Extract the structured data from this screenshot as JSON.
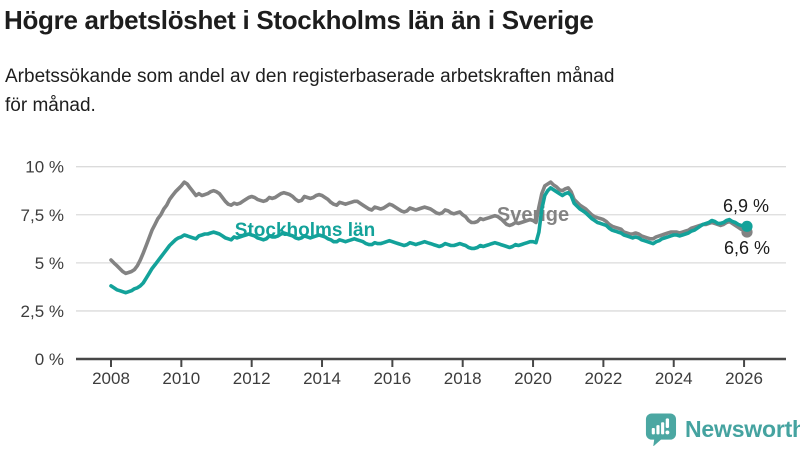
{
  "header": {
    "title": "Högre arbetslöshet i Stockholms län än i Sverige",
    "subtitle_line1": "Arbetssökande som andel av den registerbaserade arbetskraften månad",
    "subtitle_line2": "för månad."
  },
  "chart_data": {
    "type": "line",
    "title": "Högre arbetslöshet i Stockholms län än i Sverige",
    "subtitle": "Arbetssökande som andel av den registerbaserade arbetskraften månad för månad.",
    "x_unit": "month",
    "x_start": "2008-01",
    "x_end": "2026-02",
    "x_tick_years": [
      2008,
      2010,
      2012,
      2014,
      2016,
      2018,
      2020,
      2022,
      2024,
      2026
    ],
    "y_tick_values": [
      0,
      2.5,
      5,
      7.5,
      10
    ],
    "y_tick_labels": [
      "0 %",
      "2,5 %",
      "5 %",
      "7,5 %",
      "10 %"
    ],
    "ylim": [
      0,
      10.5
    ],
    "grid": true,
    "legend_position": "inline-labels",
    "series": [
      {
        "name": "Sverige",
        "color": "#838383",
        "end_label": "6,6 %",
        "end_value": 6.6,
        "values": [
          5.15,
          5.0,
          4.85,
          4.7,
          4.55,
          4.45,
          4.5,
          4.55,
          4.65,
          4.85,
          5.15,
          5.5,
          5.9,
          6.3,
          6.7,
          7.0,
          7.3,
          7.5,
          7.8,
          8.0,
          8.3,
          8.5,
          8.7,
          8.85,
          9.0,
          9.2,
          9.1,
          8.9,
          8.7,
          8.5,
          8.6,
          8.5,
          8.55,
          8.6,
          8.7,
          8.75,
          8.7,
          8.6,
          8.4,
          8.2,
          8.05,
          8.0,
          8.1,
          8.05,
          8.1,
          8.2,
          8.3,
          8.4,
          8.45,
          8.4,
          8.3,
          8.25,
          8.2,
          8.25,
          8.4,
          8.35,
          8.4,
          8.5,
          8.6,
          8.65,
          8.6,
          8.55,
          8.45,
          8.3,
          8.2,
          8.25,
          8.45,
          8.4,
          8.35,
          8.4,
          8.5,
          8.55,
          8.5,
          8.4,
          8.3,
          8.15,
          8.05,
          8.0,
          8.15,
          8.1,
          8.05,
          8.1,
          8.15,
          8.2,
          8.2,
          8.1,
          8.0,
          7.9,
          7.8,
          7.75,
          7.9,
          7.85,
          7.8,
          7.85,
          7.95,
          8.05,
          8.0,
          7.9,
          7.8,
          7.7,
          7.65,
          7.7,
          7.85,
          7.8,
          7.75,
          7.8,
          7.85,
          7.9,
          7.85,
          7.8,
          7.7,
          7.6,
          7.55,
          7.6,
          7.75,
          7.7,
          7.6,
          7.55,
          7.6,
          7.65,
          7.5,
          7.4,
          7.2,
          7.1,
          7.1,
          7.15,
          7.3,
          7.25,
          7.3,
          7.35,
          7.4,
          7.45,
          7.4,
          7.3,
          7.15,
          7.0,
          6.95,
          7.0,
          7.1,
          7.05,
          7.1,
          7.15,
          7.2,
          7.25,
          7.2,
          7.1,
          7.9,
          8.6,
          9.0,
          9.1,
          9.2,
          9.05,
          8.95,
          8.8,
          8.75,
          8.85,
          8.9,
          8.7,
          8.3,
          8.15,
          8.0,
          7.9,
          7.8,
          7.65,
          7.5,
          7.4,
          7.35,
          7.3,
          7.25,
          7.15,
          7.0,
          6.9,
          6.85,
          6.8,
          6.75,
          6.6,
          6.55,
          6.5,
          6.5,
          6.55,
          6.5,
          6.4,
          6.35,
          6.3,
          6.25,
          6.25,
          6.35,
          6.4,
          6.45,
          6.5,
          6.55,
          6.6,
          6.6,
          6.6,
          6.55,
          6.6,
          6.65,
          6.7,
          6.8,
          6.85,
          6.9,
          6.95,
          7.0,
          7.0,
          7.05,
          7.1,
          7.05,
          7.0,
          6.95,
          7.0,
          7.1,
          7.15,
          7.05,
          6.95,
          6.85,
          6.75,
          6.7,
          6.6
        ]
      },
      {
        "name": "Stockholms län",
        "color": "#13a29a",
        "end_label": "6,9 %",
        "end_value": 6.9,
        "values": [
          3.8,
          3.7,
          3.6,
          3.55,
          3.5,
          3.45,
          3.5,
          3.55,
          3.65,
          3.7,
          3.8,
          3.95,
          4.2,
          4.45,
          4.7,
          4.9,
          5.1,
          5.3,
          5.5,
          5.7,
          5.9,
          6.05,
          6.2,
          6.3,
          6.35,
          6.45,
          6.4,
          6.35,
          6.3,
          6.25,
          6.4,
          6.45,
          6.5,
          6.5,
          6.55,
          6.6,
          6.55,
          6.5,
          6.4,
          6.3,
          6.25,
          6.2,
          6.35,
          6.3,
          6.35,
          6.4,
          6.45,
          6.5,
          6.45,
          6.4,
          6.3,
          6.25,
          6.2,
          6.25,
          6.4,
          6.35,
          6.35,
          6.4,
          6.5,
          6.55,
          6.5,
          6.45,
          6.4,
          6.3,
          6.25,
          6.3,
          6.4,
          6.35,
          6.3,
          6.35,
          6.4,
          6.45,
          6.4,
          6.35,
          6.25,
          6.2,
          6.1,
          6.1,
          6.2,
          6.15,
          6.1,
          6.15,
          6.2,
          6.25,
          6.2,
          6.15,
          6.1,
          6.0,
          5.95,
          5.95,
          6.05,
          6.0,
          6.0,
          6.05,
          6.1,
          6.15,
          6.1,
          6.05,
          6.0,
          5.95,
          5.9,
          5.95,
          6.05,
          6.0,
          5.95,
          6.0,
          6.05,
          6.1,
          6.05,
          6.0,
          5.95,
          5.9,
          5.85,
          5.9,
          6.0,
          5.95,
          5.9,
          5.9,
          5.95,
          6.0,
          5.95,
          5.9,
          5.8,
          5.75,
          5.75,
          5.8,
          5.9,
          5.85,
          5.9,
          5.95,
          6.0,
          6.05,
          6.0,
          5.95,
          5.9,
          5.85,
          5.8,
          5.85,
          5.95,
          5.9,
          5.95,
          6.0,
          6.05,
          6.1,
          6.1,
          6.05,
          6.6,
          7.8,
          8.5,
          8.75,
          8.9,
          8.8,
          8.7,
          8.6,
          8.5,
          8.6,
          8.65,
          8.5,
          8.1,
          7.95,
          7.8,
          7.7,
          7.6,
          7.45,
          7.3,
          7.2,
          7.1,
          7.05,
          7.0,
          6.95,
          6.8,
          6.7,
          6.65,
          6.6,
          6.55,
          6.45,
          6.4,
          6.35,
          6.3,
          6.35,
          6.3,
          6.2,
          6.15,
          6.1,
          6.05,
          6.0,
          6.1,
          6.15,
          6.25,
          6.3,
          6.35,
          6.4,
          6.45,
          6.45,
          6.4,
          6.45,
          6.5,
          6.55,
          6.65,
          6.7,
          6.8,
          6.9,
          7.0,
          7.05,
          7.1,
          7.2,
          7.15,
          7.05,
          7.05,
          7.1,
          7.2,
          7.25,
          7.15,
          7.1,
          7.0,
          6.95,
          6.9,
          6.9
        ]
      }
    ],
    "colors": {
      "grid": "#dbdbdb",
      "axis": "#474747",
      "tick_text": "#3d3d3d",
      "annotation_text": "#1c1c1c"
    }
  },
  "footer": {
    "brand": "Newsworthy",
    "brand_color": "#45a3a0"
  }
}
